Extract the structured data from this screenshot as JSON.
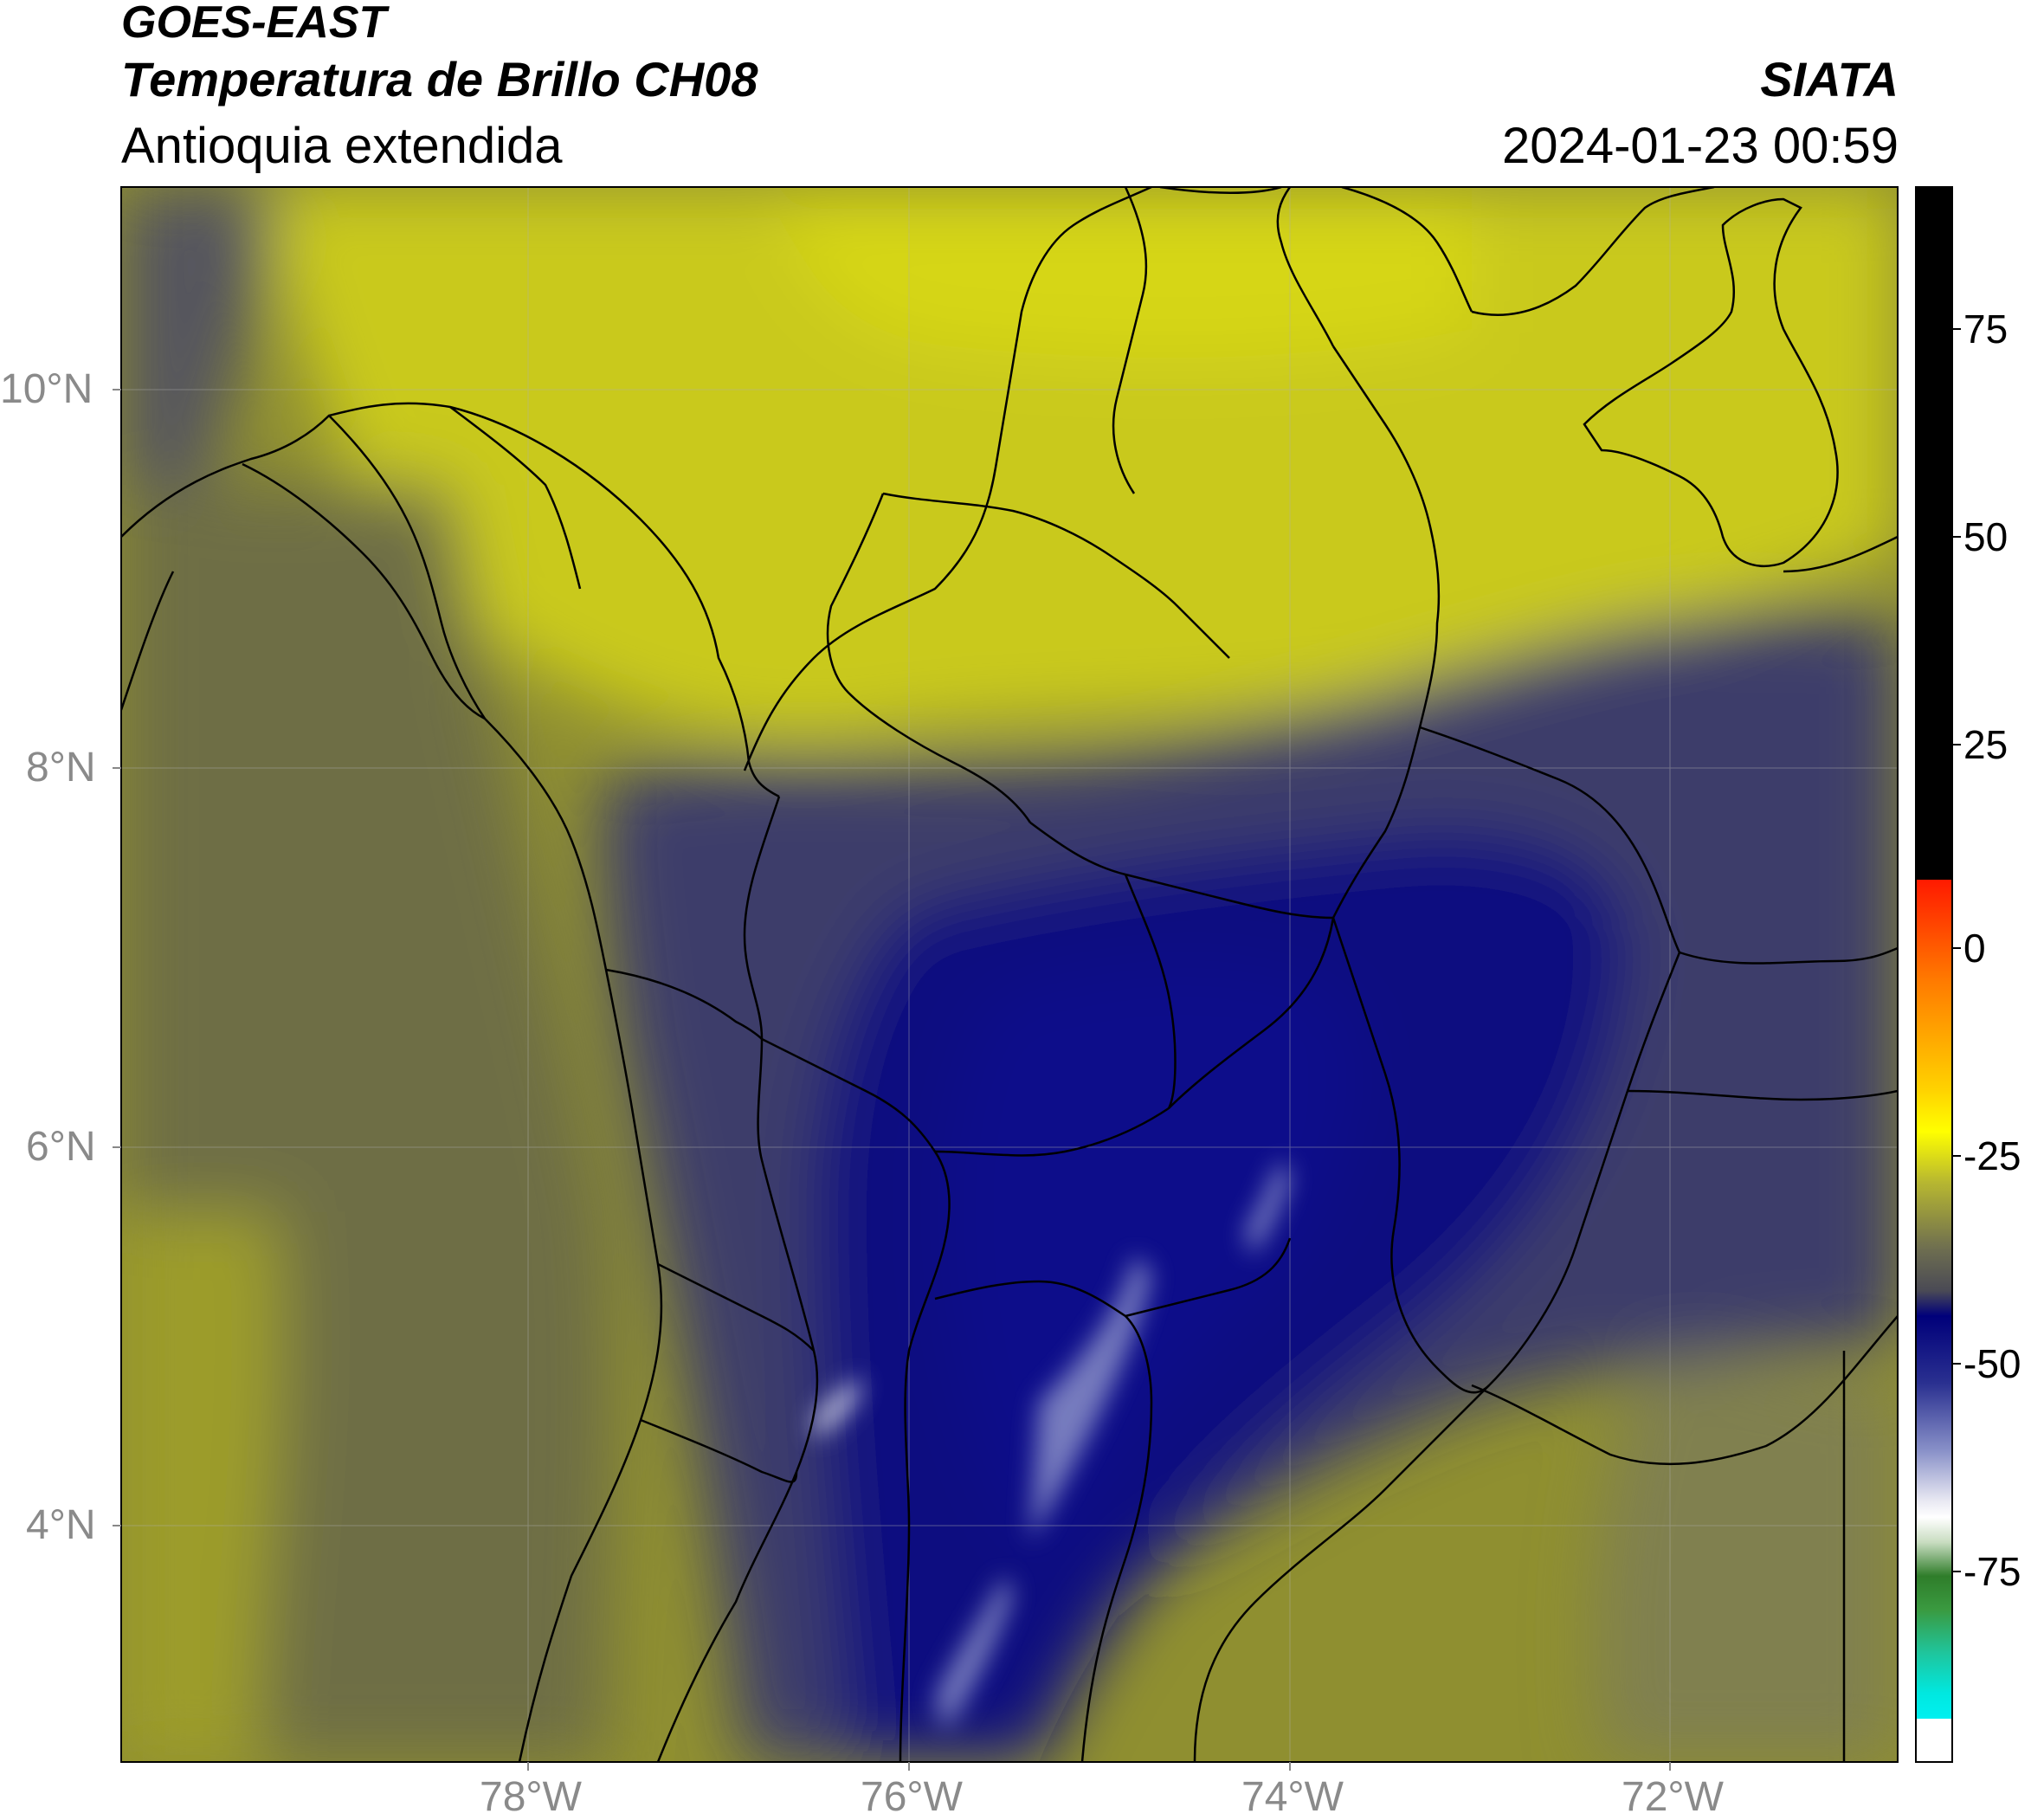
{
  "header": {
    "satellite": "GOES-EAST",
    "product": "Temperatura de Brillo CH08",
    "region": "Antioquia extendida",
    "organization": "SIATA",
    "timestamp": "2024-01-23 00:59"
  },
  "axes": {
    "longitude_ticks": [
      "78°W",
      "76°W",
      "74°W",
      "72°W"
    ],
    "latitude_ticks": [
      "10°N",
      "8°N",
      "6°N",
      "4°N"
    ],
    "grid": true
  },
  "colorbar": {
    "ticks": [
      "75",
      "50",
      "25",
      "0",
      "-25",
      "-50",
      "-75"
    ],
    "colors": {
      "warm_top": "#000000",
      "red": "#ff2000",
      "orange": "#ff8a00",
      "yellow": "#ffff00",
      "olive": "#c9c92a",
      "gray": "#5a5a5a",
      "navy": "#000080",
      "light": "#ffffff",
      "green": "#2e8b2e",
      "cyan": "#00e5e0"
    }
  }
}
